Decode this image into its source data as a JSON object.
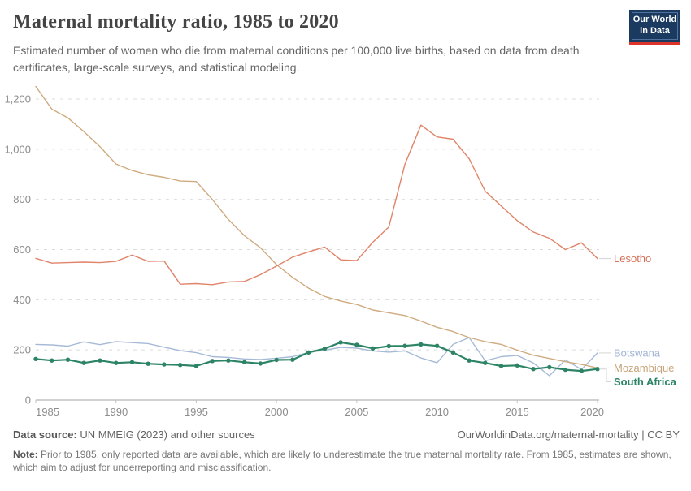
{
  "header": {
    "title": "Maternal mortality ratio, 1985 to 2020",
    "subtitle": "Estimated number of women who die from maternal conditions per 100,000 live births, based on data from death certificates, large-scale surveys, and statistical modeling.",
    "logo": {
      "line1": "Our World",
      "line2": "in Data"
    }
  },
  "chart_data": {
    "type": "line",
    "title": "Maternal mortality ratio, 1985 to 2020",
    "xlabel": "",
    "ylabel": "",
    "x_range": [
      1985,
      2020
    ],
    "ylim": [
      0,
      1200
    ],
    "grid": "horizontal-dashed",
    "legend_position": "right-of-line-ends",
    "x": [
      1985,
      1986,
      1987,
      1988,
      1989,
      1990,
      1991,
      1992,
      1993,
      1994,
      1995,
      1996,
      1997,
      1998,
      1999,
      2000,
      2001,
      2002,
      2003,
      2004,
      2005,
      2006,
      2007,
      2008,
      2009,
      2010,
      2011,
      2012,
      2013,
      2014,
      2015,
      2016,
      2017,
      2018,
      2019,
      2020
    ],
    "xticks": [
      1985,
      1990,
      1995,
      2000,
      2005,
      2010,
      2015,
      2020
    ],
    "yticks": [
      0,
      200,
      400,
      600,
      800,
      1000,
      1200
    ],
    "ytick_labels": [
      "0",
      "200",
      "400",
      "600",
      "800",
      "1,000",
      "1,200"
    ],
    "series": [
      {
        "name": "Botswana",
        "color": "#a6bad7",
        "label_color": "#a2b5d3",
        "focused": false,
        "values": [
          222,
          220,
          215,
          232,
          221,
          233,
          229,
          225,
          211,
          197,
          189,
          173,
          170,
          164,
          162,
          167,
          173,
          190,
          199,
          210,
          207,
          196,
          191,
          196,
          168,
          149,
          222,
          249,
          157,
          173,
          178,
          148,
          97,
          160,
          122,
          188
        ]
      },
      {
        "name": "Mozambique",
        "color": "#cfab80",
        "label_color": "#c7a47a",
        "focused": false,
        "values": [
          1250,
          1160,
          1125,
          1070,
          1010,
          941,
          915,
          898,
          888,
          873,
          871,
          800,
          720,
          655,
          607,
          540,
          489,
          446,
          413,
          395,
          381,
          359,
          348,
          337,
          315,
          290,
          273,
          249,
          233,
          222,
          199,
          179,
          166,
          153,
          142,
          128
        ]
      },
      {
        "name": "Lesotho",
        "color": "#e08468",
        "label_color": "#d4735a",
        "focused": false,
        "values": [
          565,
          546,
          548,
          550,
          548,
          553,
          578,
          553,
          554,
          462,
          464,
          460,
          471,
          473,
          500,
          534,
          570,
          591,
          610,
          559,
          556,
          629,
          690,
          940,
          1096,
          1049,
          1040,
          962,
          833,
          774,
          715,
          670,
          645,
          600,
          627,
          564
        ]
      },
      {
        "name": "South Africa",
        "color": "#2c8465",
        "label_color": "#2c8465",
        "focused": true,
        "values": [
          164,
          158,
          161,
          148,
          158,
          148,
          151,
          145,
          142,
          140,
          136,
          156,
          158,
          151,
          146,
          160,
          161,
          190,
          205,
          230,
          220,
          206,
          215,
          216,
          222,
          216,
          190,
          158,
          148,
          136,
          138,
          124,
          131,
          121,
          116,
          124
        ]
      }
    ]
  },
  "footer": {
    "datasource_label": "Data source:",
    "datasource_text": " UN MMEIG (2023) and other sources",
    "link_text": "OurWorldinData.org/maternal-mortality | CC BY",
    "note_label": "Note:",
    "note_text": " Prior to 1985, only reported data are available, which are likely to underestimate the true maternal mortality rate. From 1985, estimates are shown, which aim to adjust for underreporting and misclassification."
  }
}
